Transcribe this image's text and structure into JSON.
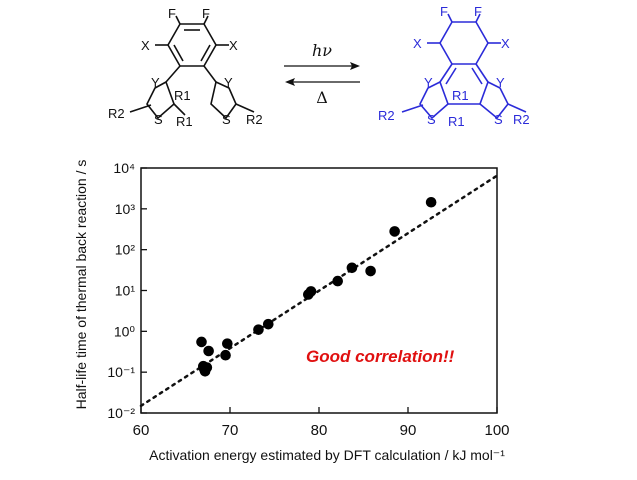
{
  "scheme": {
    "reactant_atoms": [
      "F",
      "F",
      "X",
      "X",
      "Y",
      "Y",
      "R1",
      "R1",
      "R2",
      "R2",
      "S",
      "S"
    ],
    "product_atoms": [
      "F",
      "F",
      "X",
      "X",
      "Y",
      "Y",
      "R1",
      "R1",
      "R2",
      "R2",
      "S",
      "S"
    ],
    "forward_condition": "hν",
    "reverse_condition": "Δ",
    "product_color": "#2b2bd9"
  },
  "chart_data": {
    "type": "scatter",
    "xlabel": "Activation energy estimated by DFT calculation / kJ mol⁻¹",
    "ylabel": "Half-life time of thermal back reaction / s",
    "annotation": "Good correlation!!",
    "annotation_color": "#e01010",
    "xlim": [
      60,
      100
    ],
    "ylim_log10": [
      -2,
      4
    ],
    "y_scale": "log",
    "x_ticks": [
      60,
      70,
      80,
      90,
      100
    ],
    "x_tick_labels": [
      "60",
      "70",
      "80",
      "90",
      "100"
    ],
    "y_ticks_log10": [
      -2,
      -1,
      0,
      1,
      2,
      3,
      4
    ],
    "y_tick_labels": [
      "10⁻²",
      "10⁻¹",
      "10⁰",
      "10¹",
      "10²",
      "10³",
      "10⁴"
    ],
    "grid": false,
    "points": [
      {
        "x": 66.8,
        "y": 0.55
      },
      {
        "x": 67.0,
        "y": 0.14
      },
      {
        "x": 67.1,
        "y": 0.12
      },
      {
        "x": 67.2,
        "y": 0.105
      },
      {
        "x": 67.4,
        "y": 0.13
      },
      {
        "x": 67.6,
        "y": 0.33
      },
      {
        "x": 69.5,
        "y": 0.26
      },
      {
        "x": 69.7,
        "y": 0.5
      },
      {
        "x": 73.2,
        "y": 1.1
      },
      {
        "x": 74.3,
        "y": 1.5
      },
      {
        "x": 78.8,
        "y": 8.0
      },
      {
        "x": 79.1,
        "y": 9.5
      },
      {
        "x": 82.1,
        "y": 17
      },
      {
        "x": 83.7,
        "y": 36
      },
      {
        "x": 85.8,
        "y": 30
      },
      {
        "x": 88.5,
        "y": 280
      },
      {
        "x": 92.6,
        "y": 1450
      }
    ],
    "trendline": {
      "style": "dotted",
      "x": [
        60,
        100
      ],
      "y": [
        0.015,
        6500
      ]
    }
  }
}
